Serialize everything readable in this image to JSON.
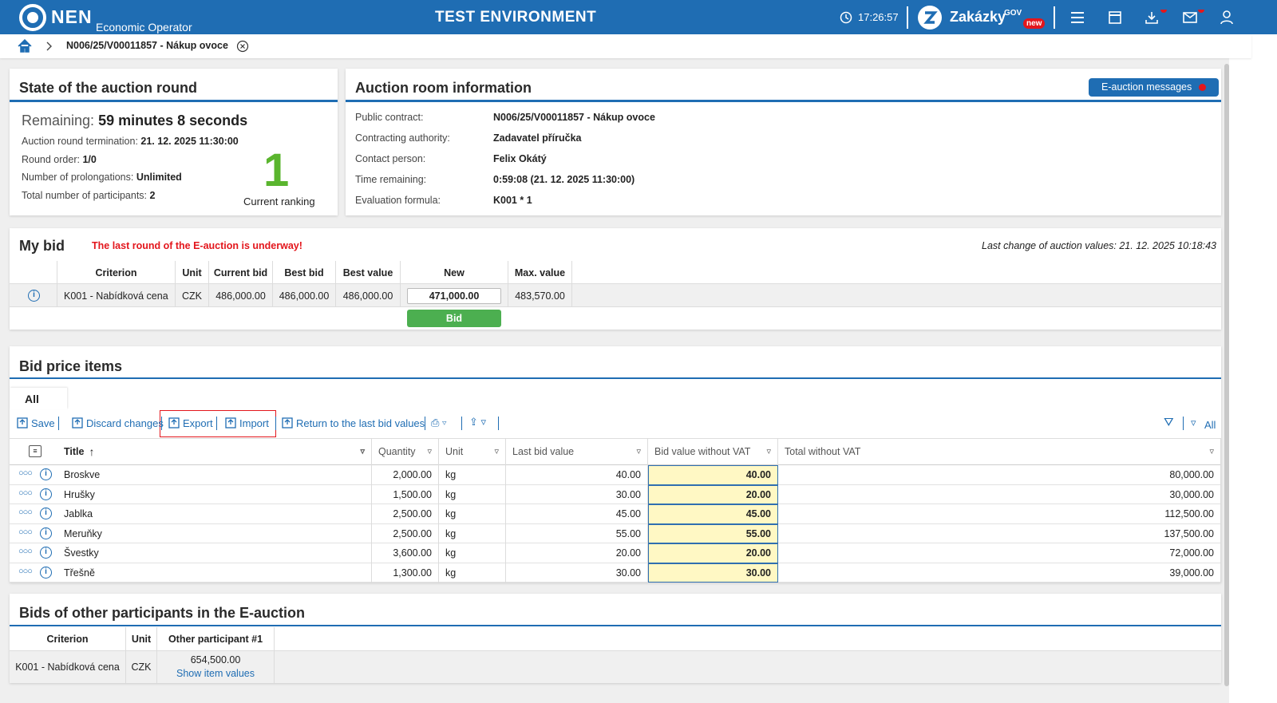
{
  "header": {
    "logo": "NEN",
    "subtitle": "Economic Operator",
    "environment": "TEST ENVIRONMENT",
    "time": "17:26:57",
    "brand": "Zakázky",
    "brand_sup": "GOV",
    "badge": "new"
  },
  "breadcrumb": {
    "item": "N006/25/V00011857 - Nákup ovoce"
  },
  "state": {
    "title": "State of the auction round",
    "remaining_label": "Remaining:",
    "remaining_value": "59 minutes 8 seconds",
    "rows": [
      [
        "Auction round termination:",
        "21. 12. 2025 11:30:00"
      ],
      [
        "Round order:",
        "1/0"
      ],
      [
        "Number of prolongations:",
        "Unlimited"
      ],
      [
        "Total number of participants:",
        "2"
      ]
    ],
    "ranking": "1",
    "ranking_label": "Current ranking"
  },
  "room": {
    "title": "Auction room information",
    "button": "E-auction messages",
    "rows": [
      [
        "Public contract:",
        "N006/25/V00011857 - Nákup ovoce"
      ],
      [
        "Contracting authority:",
        "Zadavatel příručka"
      ],
      [
        "Contact person:",
        "Felix Okátý"
      ],
      [
        "Time remaining:",
        "0:59:08 (21. 12. 2025 11:30:00)"
      ],
      [
        "Evaluation formula:",
        "K001 * 1"
      ]
    ]
  },
  "my_bid": {
    "title": "My bid",
    "warning": "The last round of the E-auction is underway!",
    "last_change": "Last change of auction values: 21. 12. 2025 10:18:43",
    "columns": [
      "Criterion",
      "Unit",
      "Current bid",
      "Best bid",
      "Best value",
      "New",
      "Max. value"
    ],
    "row": [
      "K001 - Nabídková cena",
      "CZK",
      "486,000.00",
      "486,000.00",
      "486,000.00",
      "471,000.00",
      "483,570.00"
    ],
    "button": "Bid"
  },
  "items": {
    "title": "Bid price items",
    "tab": "All",
    "toolbar": [
      "Save",
      "Discard changes",
      "Export",
      "Import",
      "Return to the last bid values"
    ],
    "filter": "All",
    "columns": [
      "Title",
      "Quantity",
      "Unit",
      "Last bid value",
      "Bid value without VAT",
      "Total without VAT"
    ],
    "rows": [
      [
        "Broskve",
        "2,000.00",
        "kg",
        "40.00",
        "40.00",
        "80,000.00"
      ],
      [
        "Hrušky",
        "1,500.00",
        "kg",
        "30.00",
        "20.00",
        "30,000.00"
      ],
      [
        "Jablka",
        "2,500.00",
        "kg",
        "45.00",
        "45.00",
        "112,500.00"
      ],
      [
        "Meruňky",
        "2,500.00",
        "kg",
        "55.00",
        "55.00",
        "137,500.00"
      ],
      [
        "Švestky",
        "3,600.00",
        "kg",
        "20.00",
        "20.00",
        "72,000.00"
      ],
      [
        "Třešně",
        "1,300.00",
        "kg",
        "30.00",
        "30.00",
        "39,000.00"
      ]
    ]
  },
  "others": {
    "title": "Bids of other participants in the E-auction",
    "columns": [
      "Criterion",
      "Unit",
      "Other participant #1"
    ],
    "row": [
      "K001 - Nabídková cena",
      "CZK",
      "654,500.00"
    ],
    "link": "Show item values"
  }
}
